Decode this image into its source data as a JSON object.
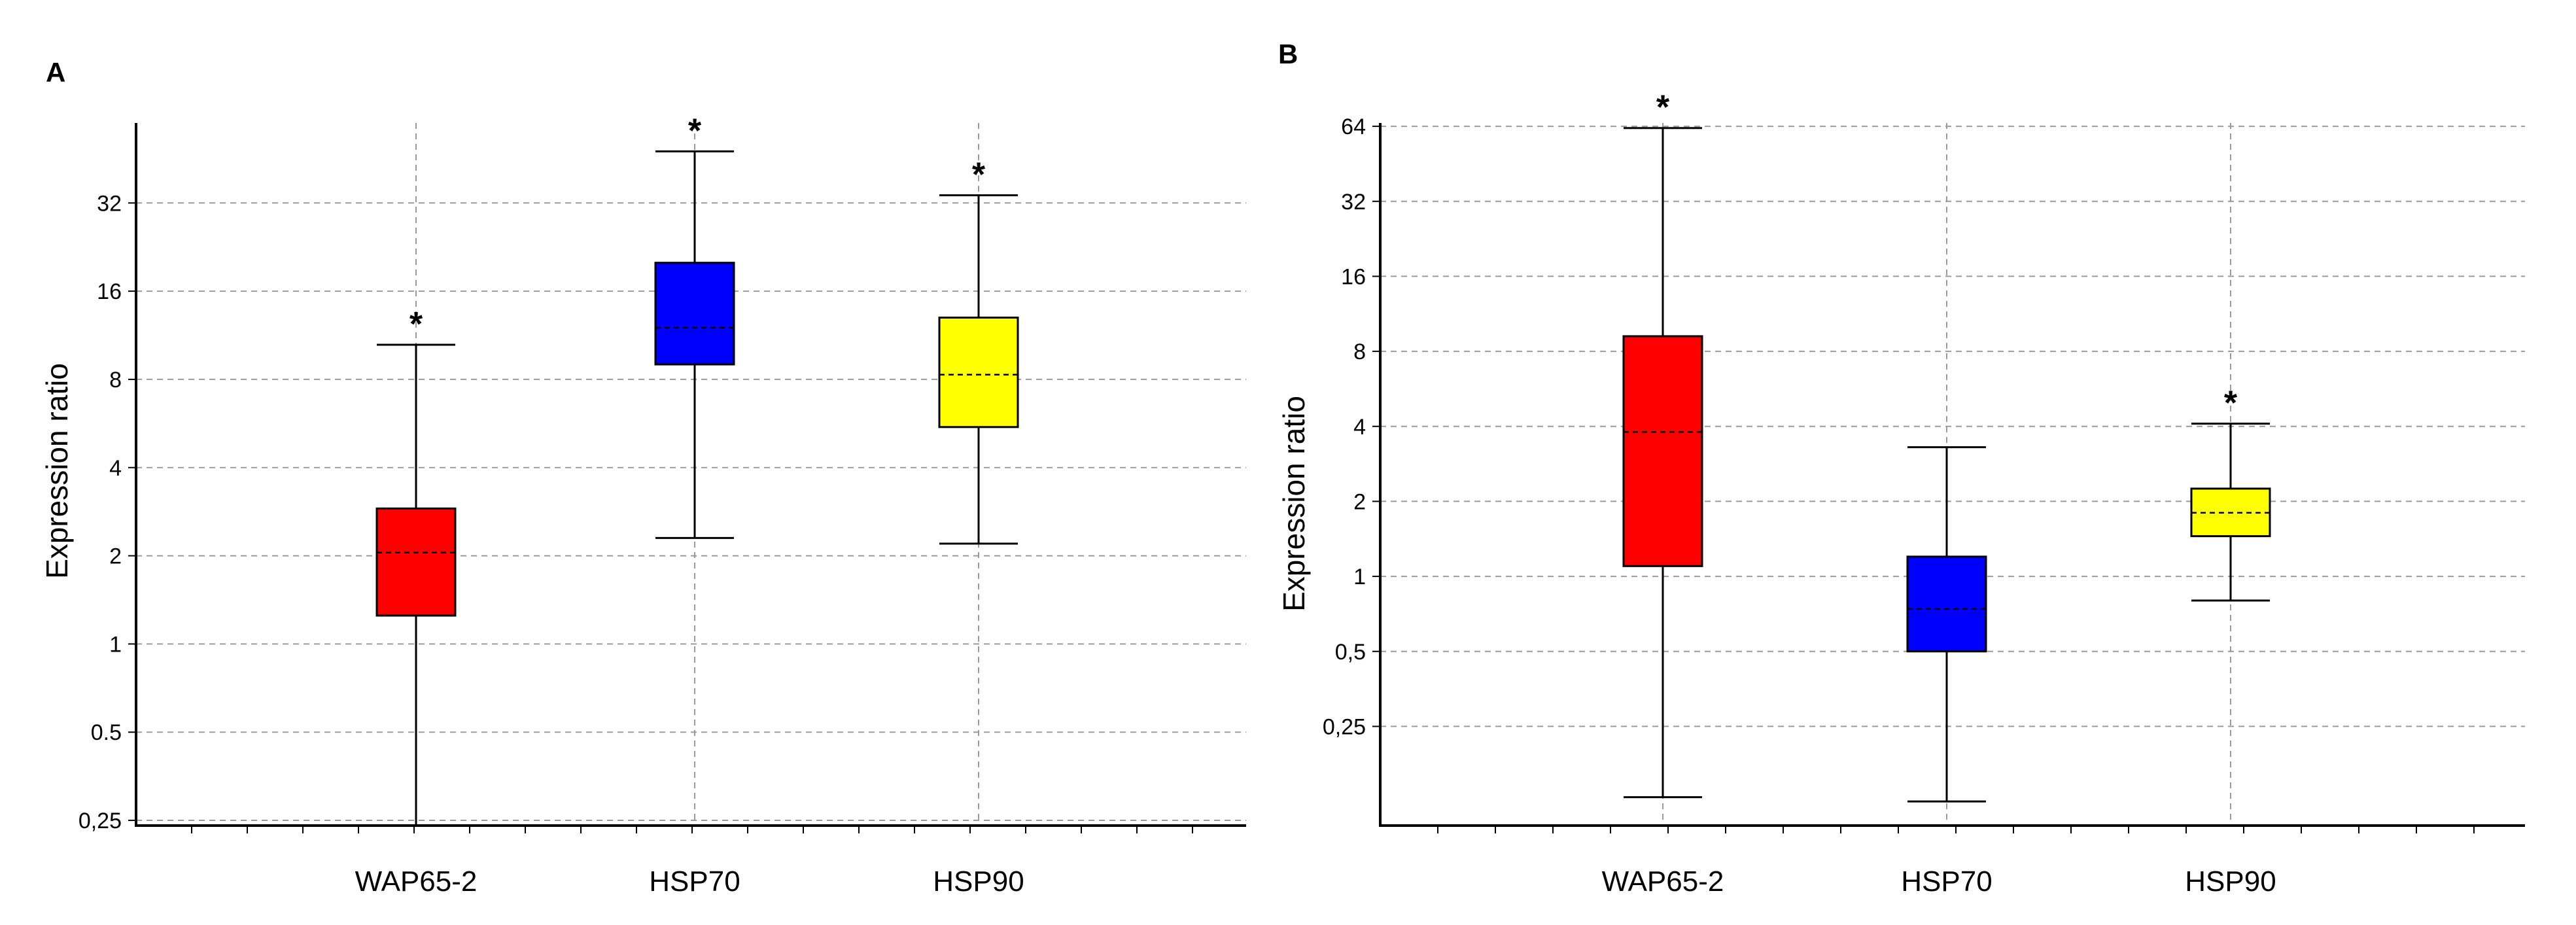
{
  "figure": {
    "colors": {
      "red": "#ff0000",
      "blue": "#0000ff",
      "yellow": "#ffff00",
      "grid": "#9a9a9a",
      "axis": "#000000"
    }
  },
  "chart_data": [
    {
      "panel_label": "A",
      "type": "box",
      "ylabel": "Expression ratio",
      "yscale": "log2",
      "ylim": [
        0.24,
        60
      ],
      "yticks": [
        0.25,
        0.5,
        1,
        2,
        4,
        8,
        16,
        32
      ],
      "ytick_labels": [
        "0,25",
        "0.5",
        "1",
        "2",
        "4",
        "8",
        "16",
        "32"
      ],
      "categories": [
        "WAP65-2",
        "HSP70",
        "HSP90"
      ],
      "boxes": [
        {
          "name": "WAP65-2",
          "color": "#ff0000",
          "whisker_low": 0.24,
          "q1": 1.25,
          "median": 2.05,
          "q3": 2.9,
          "whisker_high": 10.5,
          "significant": true
        },
        {
          "name": "HSP70",
          "color": "#0000ff",
          "whisker_low": 2.3,
          "q1": 9.0,
          "median": 12.0,
          "q3": 20.0,
          "whisker_high": 48.0,
          "significant": true
        },
        {
          "name": "HSP90",
          "color": "#ffff00",
          "whisker_low": 2.2,
          "q1": 5.5,
          "median": 8.3,
          "q3": 13.0,
          "whisker_high": 34.0,
          "significant": true
        }
      ],
      "significance_marker": "*"
    },
    {
      "panel_label": "B",
      "type": "box",
      "ylabel": "Expression ratio",
      "yscale": "log2",
      "ylim": [
        0.1,
        66
      ],
      "yticks": [
        0.25,
        0.5,
        1,
        2,
        4,
        8,
        16,
        32,
        64
      ],
      "ytick_labels": [
        "0,25",
        "0,5",
        "1",
        "2",
        "4",
        "8",
        "16",
        "32",
        "64"
      ],
      "categories": [
        "WAP65-2",
        "HSP70",
        "HSP90"
      ],
      "boxes": [
        {
          "name": "WAP65-2",
          "color": "#ff0000",
          "whisker_low": 0.13,
          "q1": 1.1,
          "median": 3.8,
          "q3": 9.2,
          "whisker_high": 63.0,
          "significant": true
        },
        {
          "name": "HSP70",
          "color": "#0000ff",
          "whisker_low": 0.125,
          "q1": 0.5,
          "median": 0.74,
          "q3": 1.2,
          "whisker_high": 3.3,
          "significant": false
        },
        {
          "name": "HSP90",
          "color": "#ffff00",
          "whisker_low": 0.8,
          "q1": 1.45,
          "median": 1.8,
          "q3": 2.25,
          "whisker_high": 4.1,
          "significant": true
        }
      ],
      "significance_marker": "*"
    }
  ]
}
